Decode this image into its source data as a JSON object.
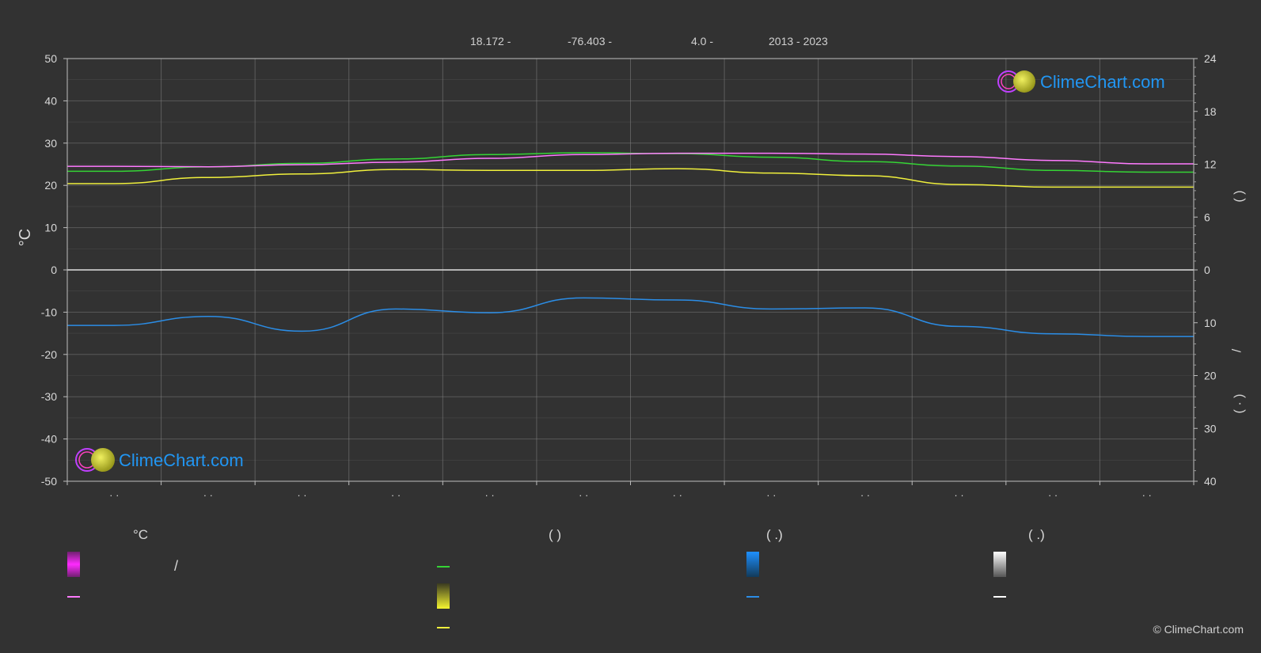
{
  "header": {
    "lat": "18.172 -",
    "lon": "-76.403 -",
    "elev": "4.0 -",
    "years": "2013 - 2023"
  },
  "colors": {
    "background": "#323232",
    "temp_band": "#d41ad4",
    "temp_line": "#ff7aff",
    "daylight_line": "#35d435",
    "sunshine_fill": "#a6a632",
    "sunshine_line": "#f0f03c",
    "rain_fill": "#1a6eb4",
    "rain_line": "#2b8de6",
    "snow": "#ffffff",
    "brand": "#2196f3"
  },
  "axes": {
    "left_unit": "°C",
    "right_paren_top": "(    )",
    "right_slash": "/",
    "right_paren_bottom": "( ·  )"
  },
  "chart_data": {
    "type": "area",
    "months": 12,
    "x_ticks": [
      "· ·",
      "· ·",
      "· ·",
      "· ·",
      "· ·",
      "· ·",
      "· ·",
      "· ·",
      "· ·",
      "· ·",
      "· ·",
      "· ·"
    ],
    "y_left": {
      "label": "°C",
      "range": [
        -50,
        50
      ],
      "ticks": [
        50,
        40,
        30,
        20,
        10,
        0,
        -10,
        -20,
        -30,
        -40,
        -50
      ]
    },
    "y_right_top": {
      "range": [
        0,
        24
      ],
      "ticks": [
        24,
        18,
        12,
        6,
        0
      ]
    },
    "y_right_bottom": {
      "range": [
        0,
        40
      ],
      "ticks": [
        10,
        20,
        30,
        40
      ]
    },
    "series": [
      {
        "key": "daylight_hours",
        "unit": "h",
        "values": [
          11.2,
          11.7,
          12.1,
          12.6,
          13.1,
          13.3,
          13.2,
          12.8,
          12.3,
          11.8,
          11.3,
          11.1
        ]
      },
      {
        "key": "sunshine_hours",
        "unit": "h",
        "values": [
          9.8,
          10.5,
          10.9,
          11.4,
          11.3,
          11.3,
          11.5,
          11.0,
          10.7,
          9.7,
          9.4,
          9.4
        ]
      },
      {
        "key": "temp_mean",
        "unit": "°C",
        "values": [
          24.5,
          24.4,
          24.9,
          25.5,
          26.4,
          27.3,
          27.6,
          27.6,
          27.4,
          26.8,
          25.9,
          25.1
        ]
      },
      {
        "key": "temp_max",
        "unit": "°C",
        "values": [
          28.5,
          28.3,
          29.0,
          29.6,
          30.6,
          31.5,
          31.7,
          31.6,
          31.2,
          30.5,
          29.7,
          29.0
        ]
      },
      {
        "key": "temp_min",
        "unit": "°C",
        "values": [
          21.2,
          21.0,
          21.4,
          22.2,
          23.3,
          24.2,
          24.5,
          24.5,
          24.2,
          23.6,
          22.7,
          21.8
        ]
      },
      {
        "key": "precip_mm",
        "unit": "mm",
        "values": [
          10.5,
          8.8,
          11.6,
          7.4,
          8.1,
          5.3,
          5.7,
          7.4,
          7.2,
          10.7,
          12.1,
          12.6
        ]
      }
    ]
  },
  "legend": {
    "col1": {
      "title": "°C",
      "row1": "/"
    },
    "col2": {
      "title": "(          )"
    },
    "col3": {
      "title": "(    .)"
    },
    "col4": {
      "title": "(    .)"
    }
  },
  "watermark": "ClimeChart.com",
  "copyright": "© ClimeChart.com"
}
